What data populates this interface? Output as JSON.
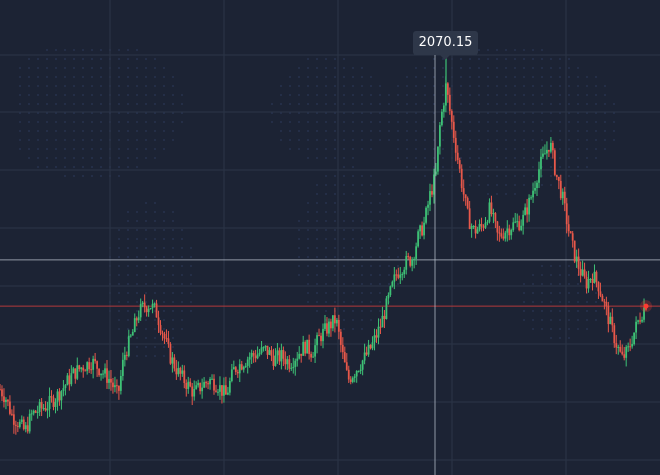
{
  "chart_data": {
    "type": "candlestick",
    "title": "",
    "xlabel": "",
    "ylabel": "",
    "grid": true,
    "background_world_map": true,
    "ylim": [
      1750,
      2110
    ],
    "tooltip": {
      "value": "2070.15",
      "label": "high"
    },
    "crosshair_price": 1913,
    "current_price": 1878,
    "colors": {
      "background": "#1c2334",
      "grid": "#2b3447",
      "up": "#3ec276",
      "down": "#e8584a",
      "crosshair": "#b9c0cc",
      "current_line": "#c33b3b",
      "marker": "#ff3b30"
    },
    "anchors": [
      [
        0,
        1815
      ],
      [
        6,
        1808
      ],
      [
        12,
        1795
      ],
      [
        18,
        1790
      ],
      [
        25,
        1783
      ],
      [
        32,
        1796
      ],
      [
        40,
        1800
      ],
      [
        48,
        1803
      ],
      [
        57,
        1810
      ],
      [
        65,
        1818
      ],
      [
        72,
        1826
      ],
      [
        82,
        1832
      ],
      [
        92,
        1836
      ],
      [
        100,
        1830
      ],
      [
        110,
        1822
      ],
      [
        118,
        1810
      ],
      [
        124,
        1840
      ],
      [
        132,
        1856
      ],
      [
        138,
        1872
      ],
      [
        144,
        1878
      ],
      [
        150,
        1879
      ],
      [
        156,
        1874
      ],
      [
        162,
        1860
      ],
      [
        170,
        1840
      ],
      [
        178,
        1828
      ],
      [
        186,
        1820
      ],
      [
        194,
        1812
      ],
      [
        202,
        1818
      ],
      [
        210,
        1822
      ],
      [
        218,
        1818
      ],
      [
        226,
        1810
      ],
      [
        234,
        1830
      ],
      [
        242,
        1835
      ],
      [
        250,
        1840
      ],
      [
        258,
        1842
      ],
      [
        266,
        1845
      ],
      [
        274,
        1838
      ],
      [
        282,
        1840
      ],
      [
        290,
        1835
      ],
      [
        298,
        1842
      ],
      [
        305,
        1848
      ],
      [
        312,
        1843
      ],
      [
        320,
        1855
      ],
      [
        328,
        1862
      ],
      [
        336,
        1868
      ],
      [
        342,
        1843
      ],
      [
        348,
        1822
      ],
      [
        356,
        1830
      ],
      [
        364,
        1838
      ],
      [
        372,
        1848
      ],
      [
        380,
        1862
      ],
      [
        388,
        1882
      ],
      [
        396,
        1902
      ],
      [
        404,
        1910
      ],
      [
        412,
        1914
      ],
      [
        418,
        1930
      ],
      [
        424,
        1940
      ],
      [
        430,
        1962
      ],
      [
        436,
        1978
      ],
      [
        440,
        2015
      ],
      [
        446,
        2045
      ],
      [
        450,
        2025
      ],
      [
        456,
        1998
      ],
      [
        462,
        1970
      ],
      [
        468,
        1945
      ],
      [
        474,
        1935
      ],
      [
        482,
        1938
      ],
      [
        490,
        1952
      ],
      [
        498,
        1930
      ],
      [
        506,
        1936
      ],
      [
        514,
        1940
      ],
      [
        522,
        1942
      ],
      [
        530,
        1958
      ],
      [
        538,
        1980
      ],
      [
        544,
        1992
      ],
      [
        550,
        2002
      ],
      [
        556,
        1978
      ],
      [
        562,
        1962
      ],
      [
        568,
        1938
      ],
      [
        574,
        1918
      ],
      [
        580,
        1905
      ],
      [
        586,
        1895
      ],
      [
        592,
        1902
      ],
      [
        598,
        1895
      ],
      [
        604,
        1880
      ],
      [
        610,
        1865
      ],
      [
        616,
        1850
      ],
      [
        622,
        1838
      ],
      [
        628,
        1844
      ],
      [
        634,
        1858
      ],
      [
        640,
        1870
      ],
      [
        646,
        1880
      ]
    ],
    "point_count": 327
  }
}
